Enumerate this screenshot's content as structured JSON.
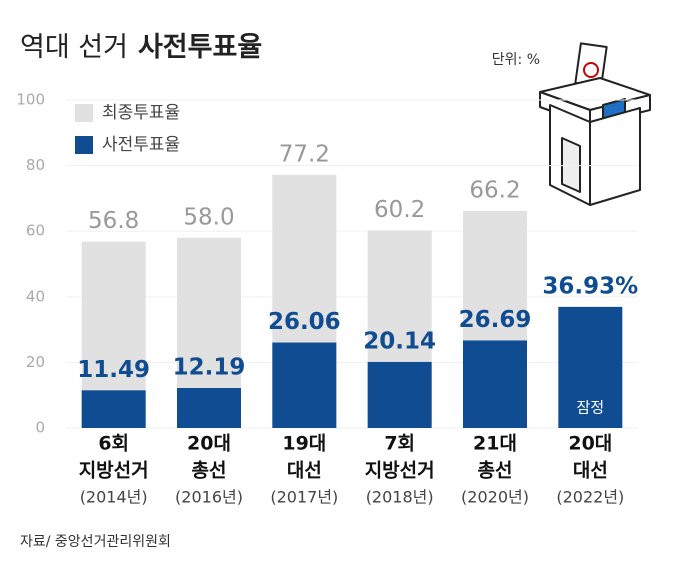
{
  "chart_data": {
    "type": "bar",
    "title": [
      "역대 선거",
      "사전투표율"
    ],
    "unit": "단위: %",
    "source": "자료/ 중앙선거관리위원회",
    "annotation": "잠정",
    "categories": [
      [
        "6회",
        "지방선거",
        "(2014년)"
      ],
      [
        "20대",
        "총선",
        "(2016년)"
      ],
      [
        "19대",
        "대선",
        "(2017년)"
      ],
      [
        "7회",
        "지방선거",
        "(2018년)"
      ],
      [
        "21대",
        "총선",
        "(2020년)"
      ],
      [
        "20대",
        "대선",
        "(2022년)"
      ]
    ],
    "series": [
      {
        "name": "최종투표율",
        "color": "#e1e1e1",
        "values": [
          56.8,
          58.0,
          77.2,
          60.2,
          66.2,
          null
        ],
        "value_labels": [
          "56.8",
          "58.0",
          "77.2",
          "60.2",
          "66.2",
          null
        ]
      },
      {
        "name": "사전투표율",
        "color": "#0f4c92",
        "values": [
          11.49,
          12.19,
          26.06,
          20.14,
          26.69,
          36.93
        ],
        "value_labels": [
          "11.49",
          "12.19",
          "26.06",
          "20.14",
          "26.69",
          "36.93%"
        ]
      }
    ],
    "ylim": [
      0,
      100
    ],
    "yticks": [
      0,
      20,
      40,
      60,
      80,
      100
    ],
    "grid": true
  }
}
